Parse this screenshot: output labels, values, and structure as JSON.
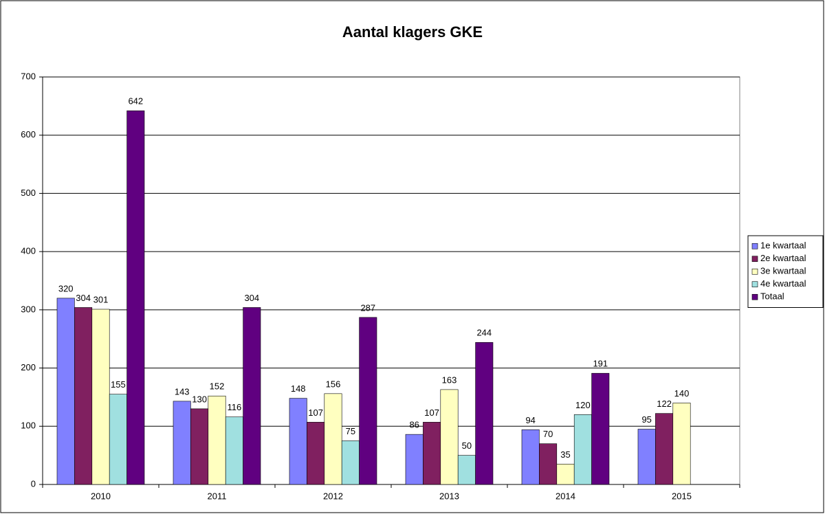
{
  "chart_data": {
    "type": "bar",
    "title": "Aantal klagers GKE",
    "categories": [
      "2010",
      "2011",
      "2012",
      "2013",
      "2014",
      "2015"
    ],
    "series": [
      {
        "name": "1e kwartaal",
        "color": "#8080ff",
        "values": [
          320,
          143,
          148,
          86,
          94,
          95
        ]
      },
      {
        "name": "2e kwartaal",
        "color": "#802060",
        "values": [
          304,
          130,
          107,
          107,
          70,
          122
        ]
      },
      {
        "name": "3e kwartaal",
        "color": "#ffffc0",
        "values": [
          301,
          152,
          156,
          163,
          35,
          140
        ]
      },
      {
        "name": "4e kwartaal",
        "color": "#a0e0e0",
        "values": [
          155,
          116,
          75,
          50,
          120,
          null
        ]
      },
      {
        "name": "Totaal",
        "color": "#600080",
        "values": [
          642,
          304,
          287,
          244,
          191,
          null
        ]
      }
    ],
    "ylim": [
      0,
      700
    ],
    "yticks": [
      0,
      100,
      200,
      300,
      400,
      500,
      600,
      700
    ],
    "grid": true,
    "legend": "right"
  }
}
